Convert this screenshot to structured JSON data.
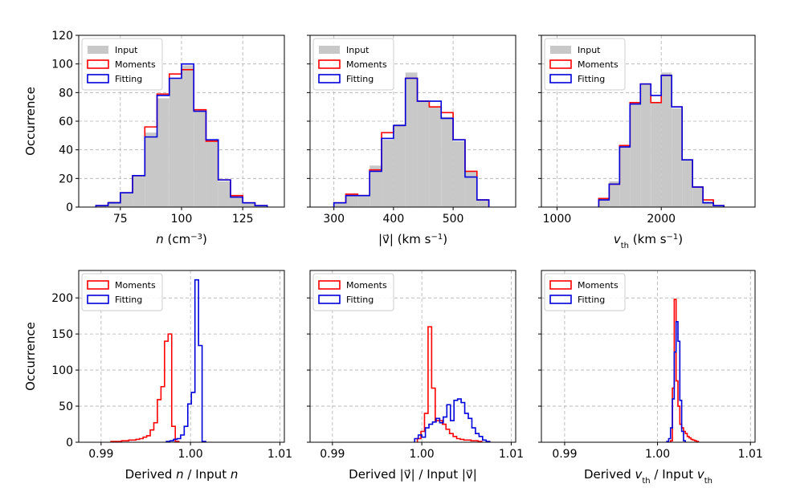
{
  "colors": {
    "input": "#c8c8c8",
    "moments": "#ff0000",
    "fitting": "#0000dd",
    "grid": "#b0b0b0"
  },
  "chart_data": [
    {
      "type": "bar",
      "id": "density",
      "xlabel_parts": [
        {
          "text": "n",
          "style": "italic"
        },
        {
          "text": " (cm"
        },
        {
          "text": "−3",
          "style": "sup"
        },
        {
          "text": ")"
        }
      ],
      "ylabel": "Occurrence",
      "xlim": [
        58,
        142
      ],
      "ylim": [
        0,
        120
      ],
      "xticks": [
        75,
        100,
        125
      ],
      "xtick_labels": [
        "75",
        "100",
        "125"
      ],
      "yticks": [
        0,
        20,
        40,
        60,
        80,
        100,
        120
      ],
      "ytick_labels": [
        "0",
        "20",
        "40",
        "60",
        "80",
        "100",
        "120"
      ],
      "legend": [
        "Input",
        "Moments",
        "Fitting"
      ],
      "bin_edges": [
        65,
        70,
        75,
        80,
        85,
        90,
        95,
        100,
        105,
        110,
        115,
        120,
        125,
        130,
        135
      ],
      "series": [
        {
          "name": "Input",
          "values": [
            1,
            4,
            10,
            22,
            52,
            76,
            90,
            99,
            67,
            47,
            18,
            8,
            3,
            1
          ]
        },
        {
          "name": "Moments",
          "values": [
            1,
            3,
            10,
            22,
            56,
            79,
            93,
            96,
            68,
            46,
            19,
            8,
            3,
            1
          ]
        },
        {
          "name": "Fitting",
          "values": [
            1,
            3,
            10,
            22,
            49,
            78,
            90,
            100,
            67,
            47,
            19,
            7,
            3,
            1
          ]
        }
      ]
    },
    {
      "type": "bar",
      "id": "velocity",
      "xlabel_parts": [
        {
          "text": "|v⃗|"
        },
        {
          "text": " (km s"
        },
        {
          "text": "−1",
          "style": "sup"
        },
        {
          "text": ")"
        }
      ],
      "xlim": [
        260,
        605
      ],
      "ylim": [
        0,
        120
      ],
      "xticks": [
        300,
        400,
        500
      ],
      "xtick_labels": [
        "300",
        "400",
        "500"
      ],
      "yticks": [
        0,
        20,
        40,
        60,
        80,
        100,
        120
      ],
      "legend": [
        "Input",
        "Moments",
        "Fitting"
      ],
      "bin_edges": [
        300,
        320,
        340,
        360,
        380,
        400,
        420,
        440,
        460,
        480,
        500,
        520,
        540,
        560
      ],
      "series": [
        {
          "name": "Input",
          "values": [
            3,
            9,
            8,
            29,
            47,
            58,
            94,
            74,
            70,
            63,
            46,
            25,
            5
          ]
        },
        {
          "name": "Moments",
          "values": [
            3,
            9,
            8,
            26,
            52,
            57,
            90,
            74,
            70,
            66,
            47,
            25,
            5
          ]
        },
        {
          "name": "Fitting",
          "values": [
            3,
            8,
            8,
            25,
            48,
            57,
            90,
            74,
            74,
            62,
            47,
            21,
            5
          ]
        }
      ]
    },
    {
      "type": "bar",
      "id": "thermal",
      "xlabel_parts": [
        {
          "text": "v",
          "style": "italic"
        },
        {
          "text": "th",
          "style": "sub"
        },
        {
          "text": " (km s"
        },
        {
          "text": "−1",
          "style": "sup"
        },
        {
          "text": ")"
        }
      ],
      "xlim": [
        850,
        2900
      ],
      "ylim": [
        0,
        120
      ],
      "xticks": [
        1000,
        2000
      ],
      "xtick_labels": [
        "1000",
        "2000"
      ],
      "yticks": [
        0,
        20,
        40,
        60,
        80,
        100,
        120
      ],
      "legend": [
        "Input",
        "Moments",
        "Fitting"
      ],
      "bin_edges": [
        1400,
        1500,
        1600,
        1700,
        1800,
        1900,
        2000,
        2100,
        2200,
        2300,
        2400,
        2500,
        2600
      ],
      "series": [
        {
          "name": "Input",
          "values": [
            6,
            18,
            43,
            72,
            86,
            73,
            94,
            69,
            33,
            14,
            4,
            1
          ]
        },
        {
          "name": "Moments",
          "values": [
            6,
            16,
            43,
            73,
            86,
            73,
            92,
            70,
            33,
            14,
            5,
            1
          ]
        },
        {
          "name": "Fitting",
          "values": [
            5,
            16,
            42,
            72,
            86,
            78,
            92,
            70,
            33,
            14,
            3,
            1
          ]
        }
      ]
    },
    {
      "type": "bar",
      "id": "density-ratio",
      "xlabel_parts": [
        {
          "text": "Derived "
        },
        {
          "text": "n",
          "style": "italic"
        },
        {
          "text": " / Input "
        },
        {
          "text": "n",
          "style": "italic"
        }
      ],
      "ylabel": "Occurrence",
      "xlim": [
        0.9875,
        1.0105
      ],
      "ylim": [
        0,
        238
      ],
      "xticks": [
        0.99,
        1.0,
        1.01
      ],
      "xtick_labels": [
        "0.99",
        "1.00",
        "1.01"
      ],
      "yticks": [
        0,
        50,
        100,
        150,
        200
      ],
      "ytick_labels": [
        "0",
        "50",
        "100",
        "150",
        "200"
      ],
      "legend": [
        "Moments",
        "Fitting"
      ],
      "series": [
        {
          "name": "Moments",
          "bin_start": 0.9911,
          "bin_width": 0.0004,
          "values": [
            1,
            1,
            1,
            2,
            2,
            3,
            3,
            4,
            5,
            7,
            9,
            17,
            27,
            59,
            77,
            140,
            150,
            22,
            1
          ]
        },
        {
          "name": "Fitting",
          "bin_start": 0.9973,
          "bin_width": 0.0004,
          "values": [
            1,
            2,
            4,
            5,
            10,
            22,
            53,
            69,
            225,
            134,
            1
          ]
        }
      ]
    },
    {
      "type": "bar",
      "id": "velocity-ratio",
      "xlabel_parts": [
        {
          "text": "Derived "
        },
        {
          "text": "|v⃗|"
        },
        {
          "text": " / Input "
        },
        {
          "text": "|v⃗|"
        }
      ],
      "xlim": [
        0.9875,
        1.0105
      ],
      "ylim": [
        0,
        238
      ],
      "xticks": [
        0.99,
        1.0,
        1.01
      ],
      "xtick_labels": [
        "0.99",
        "1.00",
        "1.01"
      ],
      "yticks": [
        0,
        50,
        100,
        150,
        200
      ],
      "legend": [
        "Moments",
        "Fitting"
      ],
      "series": [
        {
          "name": "Moments",
          "bin_start": 0.9995,
          "bin_width": 0.0004,
          "values": [
            5,
            15,
            40,
            160,
            75,
            30,
            30,
            25,
            18,
            12,
            8,
            5,
            4,
            3,
            3,
            2,
            2,
            1
          ]
        },
        {
          "name": "Fitting",
          "bin_start": 0.9992,
          "bin_width": 0.0004,
          "values": [
            5,
            10,
            7,
            20,
            25,
            28,
            33,
            27,
            35,
            52,
            30,
            58,
            60,
            55,
            40,
            33,
            20,
            12,
            8,
            3,
            1
          ]
        }
      ]
    },
    {
      "type": "bar",
      "id": "thermal-ratio",
      "xlabel_parts": [
        {
          "text": "Derived "
        },
        {
          "text": "v",
          "style": "italic"
        },
        {
          "text": "th",
          "style": "sub"
        },
        {
          "text": " / Input "
        },
        {
          "text": "v",
          "style": "italic"
        },
        {
          "text": "th",
          "style": "sub"
        }
      ],
      "xlim": [
        0.9875,
        1.0105
      ],
      "ylim": [
        0,
        238
      ],
      "xticks": [
        0.99,
        1.0,
        1.01
      ],
      "xtick_labels": [
        "0.99",
        "1.00",
        "1.01"
      ],
      "yticks": [
        0,
        50,
        100,
        150,
        200
      ],
      "legend": [
        "Moments",
        "Fitting"
      ],
      "series": [
        {
          "name": "Moments",
          "bin_start": 1.0014,
          "bin_width": 0.0002,
          "values": [
            2,
            75,
            198,
            85,
            50,
            25,
            20,
            15,
            12,
            8,
            6,
            4,
            3,
            2,
            1
          ]
        },
        {
          "name": "Fitting",
          "bin_start": 1.001,
          "bin_width": 0.0002,
          "values": [
            1,
            5,
            20,
            60,
            125,
            167,
            140,
            58,
            15,
            2
          ]
        }
      ]
    }
  ]
}
